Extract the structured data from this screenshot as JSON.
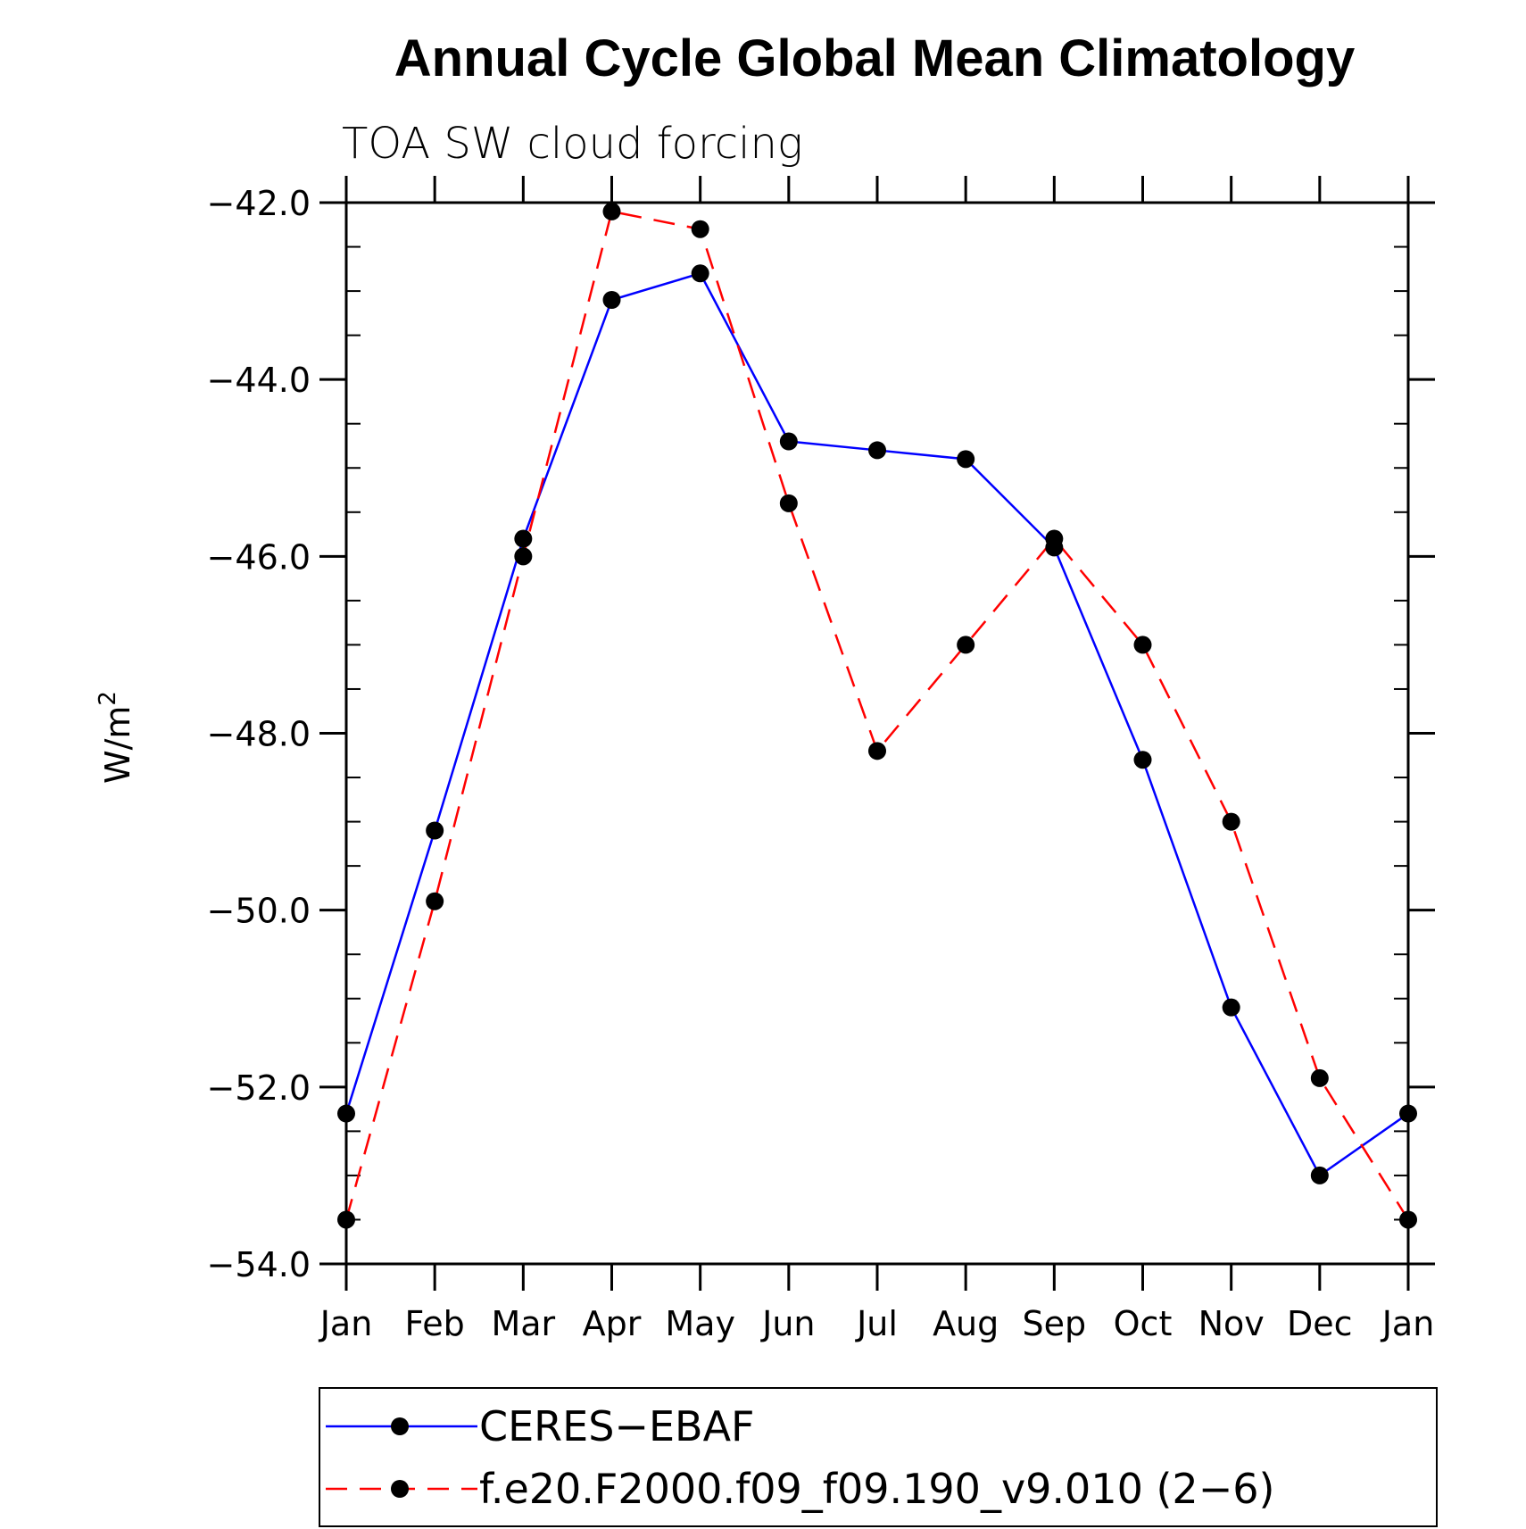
{
  "chart_data": {
    "type": "line",
    "title": "Annual Cycle Global Mean Climatology",
    "subtitle": "TOA SW cloud forcing",
    "ylabel": "W/m",
    "ylabel_sup": "2",
    "xlabel": "",
    "categories": [
      "Jan",
      "Feb",
      "Mar",
      "Apr",
      "May",
      "Jun",
      "Jul",
      "Aug",
      "Sep",
      "Oct",
      "Nov",
      "Dec",
      "Jan"
    ],
    "ylim": [
      -54.0,
      -42.0
    ],
    "yticks": [
      "−42.0",
      "−44.0",
      "−46.0",
      "−48.0",
      "−50.0",
      "−52.0",
      "−54.0"
    ],
    "ytick_values": [
      -42,
      -44,
      -46,
      -48,
      -50,
      -52,
      -54
    ],
    "grid": false,
    "legend_position": "bottom",
    "series": [
      {
        "name": "CERES−EBAF",
        "color": "#0000ff",
        "dash": "solid",
        "values": [
          -52.3,
          -49.1,
          -45.8,
          -43.1,
          -42.8,
          -44.7,
          -44.8,
          -44.9,
          -45.9,
          -48.3,
          -51.1,
          -53.0,
          -52.3
        ]
      },
      {
        "name": "f.e20.F2000.f09_f09.190_v9.010 (2−6)",
        "color": "#ff0000",
        "dash": "dashed",
        "values": [
          -53.5,
          -49.9,
          -46.0,
          -42.1,
          -42.3,
          -45.4,
          -48.2,
          -47.0,
          -45.8,
          -47.0,
          -49.0,
          -51.9,
          -53.5
        ]
      }
    ]
  }
}
